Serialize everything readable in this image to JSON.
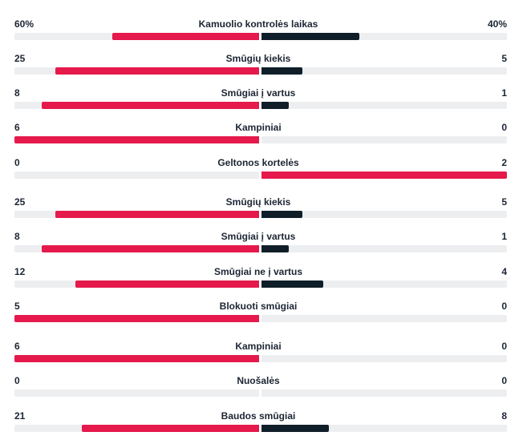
{
  "colors": {
    "home": "#e5194b",
    "away": "#0f1e29",
    "away_alt": "#e5194b",
    "track": "#eceef0"
  },
  "stats": [
    {
      "label": "Kamuolio kontrolės laikas",
      "left": "60%",
      "right": "40%",
      "home_share": 0.6,
      "away_share": 0.4
    },
    {
      "label": "Smūgių kiekis",
      "left": "25",
      "right": "5",
      "home_share": 0.833,
      "away_share": 0.167
    },
    {
      "label": "Smūgiai į vartus",
      "left": "8",
      "right": "1",
      "home_share": 0.889,
      "away_share": 0.111
    },
    {
      "label": "Kampiniai",
      "left": "6",
      "right": "0",
      "home_share": 1.0,
      "away_share": 0.0
    },
    {
      "label": "Geltonos kortelės",
      "left": "0",
      "right": "2",
      "home_share": 0.0,
      "away_share": 1.0,
      "away_red": true
    },
    {
      "label": "Smūgių kiekis",
      "left": "25",
      "right": "5",
      "home_share": 0.833,
      "away_share": 0.167
    },
    {
      "label": "Smūgiai į vartus",
      "left": "8",
      "right": "1",
      "home_share": 0.889,
      "away_share": 0.111
    },
    {
      "label": "Smūgiai ne į vartus",
      "left": "12",
      "right": "4",
      "home_share": 0.75,
      "away_share": 0.25
    },
    {
      "label": "Blokuoti smūgiai",
      "left": "5",
      "right": "0",
      "home_share": 1.0,
      "away_share": 0.0
    },
    {
      "label": "Kampiniai",
      "left": "6",
      "right": "0",
      "home_share": 1.0,
      "away_share": 0.0
    },
    {
      "label": "Nuošalės",
      "left": "0",
      "right": "0",
      "home_share": 0.0,
      "away_share": 0.0
    },
    {
      "label": "Baudos smūgiai",
      "left": "21",
      "right": "8",
      "home_share": 0.724,
      "away_share": 0.276
    }
  ]
}
